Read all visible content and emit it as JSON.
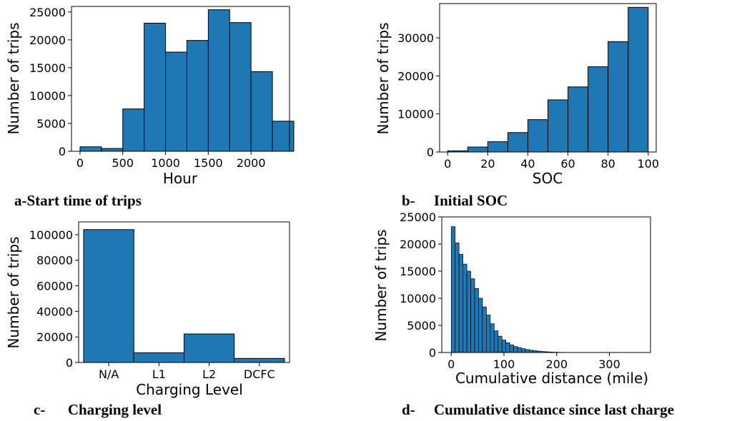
{
  "colors": {
    "bar_fill": "#1f77b4",
    "bar_edge": "#000000"
  },
  "chart_data": [
    {
      "id": "a",
      "type": "bar",
      "caption": "a-Start time of trips",
      "xlabel": "Hour",
      "ylabel": "Number of trips",
      "xlim": [
        -100,
        2450
      ],
      "ylim": [
        0,
        26000
      ],
      "xticks": [
        0,
        500,
        1000,
        1500,
        2000
      ],
      "yticks": [
        0,
        5000,
        10000,
        15000,
        20000,
        25000
      ],
      "bin_edges": [
        0,
        250,
        500,
        750,
        1000,
        1250,
        1500,
        1750,
        2000,
        2250,
        2500
      ],
      "values": [
        800,
        500,
        7600,
        23000,
        17800,
        19900,
        25400,
        23100,
        14300,
        5400
      ]
    },
    {
      "id": "b",
      "type": "bar",
      "caption": "b-     Initial SOC",
      "xlabel": "SOC",
      "ylabel": "Number of trips",
      "xlim": [
        -4,
        104
      ],
      "ylim": [
        0,
        39000
      ],
      "xticks": [
        0,
        20,
        40,
        60,
        80,
        100
      ],
      "yticks": [
        0,
        10000,
        20000,
        30000
      ],
      "bin_edges": [
        0,
        10,
        20,
        30,
        40,
        50,
        60,
        70,
        80,
        90,
        100
      ],
      "values": [
        300,
        1300,
        2700,
        5100,
        8500,
        13700,
        17100,
        22400,
        29000,
        38000
      ]
    },
    {
      "id": "c",
      "type": "bar",
      "caption": "c-      Charging level",
      "xlabel": "Charging Level",
      "ylabel": "Number of trips",
      "xlim": [
        -0.6,
        3.6
      ],
      "ylim": [
        0,
        110000
      ],
      "categories": [
        "N/A",
        "L1",
        "L2",
        "DCFC"
      ],
      "yticks": [
        0,
        20000,
        40000,
        60000,
        80000,
        100000
      ],
      "values": [
        104000,
        7600,
        22300,
        3200
      ]
    },
    {
      "id": "d",
      "type": "bar",
      "caption": "d-     Cumulative distance since last charge",
      "xlabel": "Cumulative distance (mile)",
      "ylabel": "Number of trips",
      "xlim": [
        -18,
        378
      ],
      "ylim": [
        0,
        25000
      ],
      "xticks": [
        0,
        100,
        200,
        300
      ],
      "yticks": [
        0,
        5000,
        10000,
        15000,
        20000,
        25000
      ],
      "bin_width": 7.4,
      "bin_start": 0,
      "values": [
        23200,
        20200,
        18100,
        16300,
        15000,
        13600,
        11800,
        10000,
        8400,
        6900,
        5300,
        4000,
        3000,
        2300,
        1800,
        1400,
        1100,
        900,
        700,
        550,
        420,
        330,
        250,
        180,
        130,
        90,
        60,
        40,
        25,
        15,
        10,
        8,
        6,
        5,
        4,
        3,
        3,
        2,
        2,
        2,
        1,
        1,
        1,
        1,
        1,
        1,
        1,
        1
      ]
    }
  ]
}
